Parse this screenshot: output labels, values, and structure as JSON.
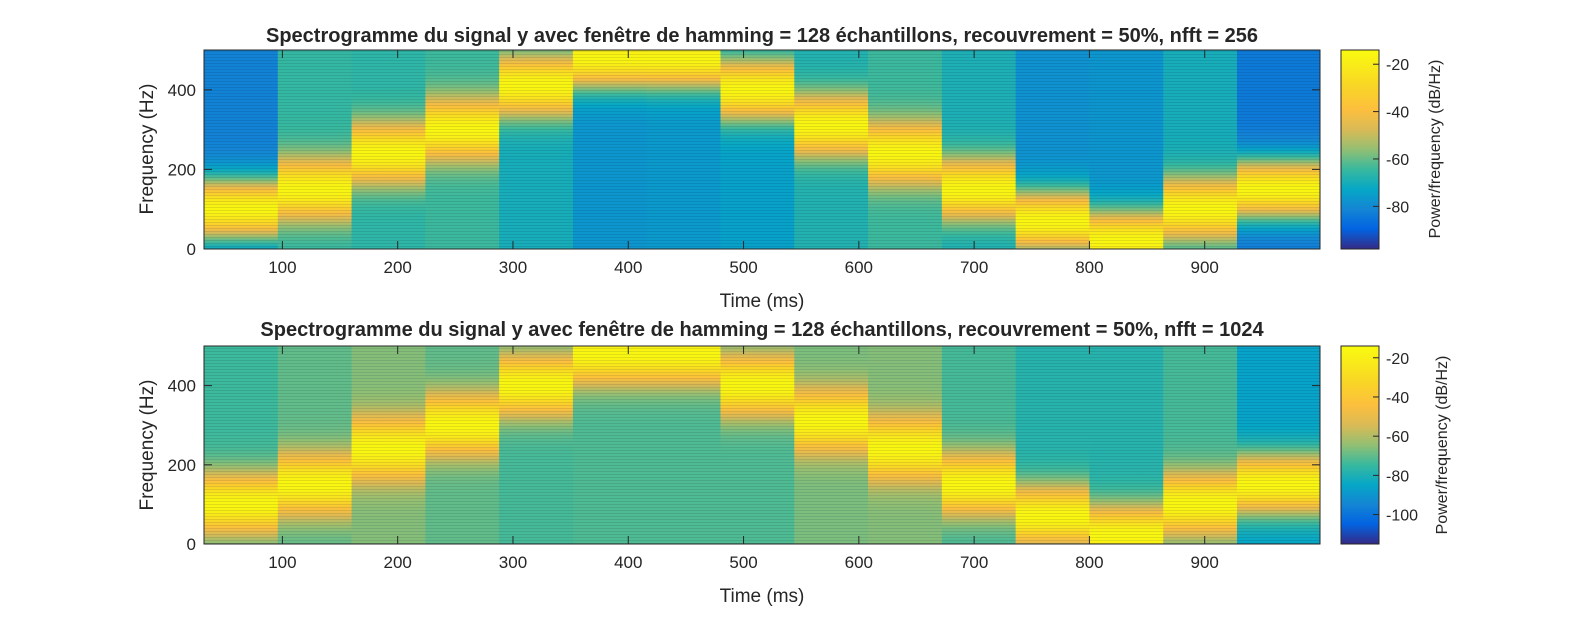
{
  "chart_data": [
    {
      "type": "heatmap",
      "title": "Spectrogramme du signal y avec fenêtre de hamming  = 128 échantillons, recouvrement = 50%, nfft = 256",
      "xlabel": "Time (ms)",
      "ylabel": "Frequency (Hz)",
      "xlim": [
        32,
        1000
      ],
      "ylim": [
        0,
        500
      ],
      "xticks": [
        100,
        200,
        300,
        400,
        500,
        600,
        700,
        800,
        900
      ],
      "yticks": [
        0,
        200,
        400
      ],
      "colorbar": {
        "label": "Power/frequency (dB/Hz)",
        "range": [
          -98,
          -14
        ],
        "ticks": [
          -20,
          -40,
          -60,
          -80
        ],
        "colormap": "parula"
      },
      "segments": [
        {
          "t_start": 32,
          "t_end": 96,
          "center_freq_hz": 100,
          "background_db": -82
        },
        {
          "t_start": 96,
          "t_end": 160,
          "center_freq_hz": 150,
          "background_db": -65
        },
        {
          "t_start": 160,
          "t_end": 224,
          "center_freq_hz": 240,
          "background_db": -66
        },
        {
          "t_start": 224,
          "t_end": 288,
          "center_freq_hz": 300,
          "background_db": -64
        },
        {
          "t_start": 288,
          "t_end": 352,
          "center_freq_hz": 410,
          "background_db": -70
        },
        {
          "t_start": 352,
          "t_end": 416,
          "center_freq_hz": 480,
          "background_db": -77
        },
        {
          "t_start": 416,
          "t_end": 480,
          "center_freq_hz": 480,
          "background_db": -76
        },
        {
          "t_start": 480,
          "t_end": 544,
          "center_freq_hz": 400,
          "background_db": -74
        },
        {
          "t_start": 544,
          "t_end": 608,
          "center_freq_hz": 310,
          "background_db": -68
        },
        {
          "t_start": 608,
          "t_end": 672,
          "center_freq_hz": 240,
          "background_db": -64
        },
        {
          "t_start": 672,
          "t_end": 736,
          "center_freq_hz": 150,
          "background_db": -69
        },
        {
          "t_start": 736,
          "t_end": 800,
          "center_freq_hz": 70,
          "background_db": -78
        },
        {
          "t_start": 800,
          "t_end": 864,
          "center_freq_hz": 20,
          "background_db": -77
        },
        {
          "t_start": 864,
          "t_end": 928,
          "center_freq_hz": 100,
          "background_db": -70
        },
        {
          "t_start": 928,
          "t_end": 1000,
          "center_freq_hz": 150,
          "background_db": -84
        }
      ]
    },
    {
      "type": "heatmap",
      "title": "Spectrogramme du signal y avec fenêtre de hamming = 128 échantillons, recouvrement = 50%, nfft = 1024",
      "xlabel": "Time (ms)",
      "ylabel": "Frequency (Hz)",
      "xlim": [
        32,
        1000
      ],
      "ylim": [
        0,
        500
      ],
      "xticks": [
        100,
        200,
        300,
        400,
        500,
        600,
        700,
        800,
        900
      ],
      "yticks": [
        0,
        200,
        400
      ],
      "colorbar": {
        "label": "Power/frequency (dB/Hz)",
        "range": [
          -115,
          -14
        ],
        "ticks": [
          -20,
          -40,
          -60,
          -80,
          -100
        ],
        "colormap": "parula"
      },
      "segments": [
        {
          "t_start": 32,
          "t_end": 96,
          "center_freq_hz": 100,
          "background_db": -74
        },
        {
          "t_start": 96,
          "t_end": 160,
          "center_freq_hz": 150,
          "background_db": -70
        },
        {
          "t_start": 160,
          "t_end": 224,
          "center_freq_hz": 240,
          "background_db": -66
        },
        {
          "t_start": 224,
          "t_end": 288,
          "center_freq_hz": 300,
          "background_db": -70
        },
        {
          "t_start": 288,
          "t_end": 352,
          "center_freq_hz": 400,
          "background_db": -73
        },
        {
          "t_start": 352,
          "t_end": 416,
          "center_freq_hz": 480,
          "background_db": -72
        },
        {
          "t_start": 416,
          "t_end": 480,
          "center_freq_hz": 480,
          "background_db": -72
        },
        {
          "t_start": 480,
          "t_end": 544,
          "center_freq_hz": 400,
          "background_db": -72
        },
        {
          "t_start": 544,
          "t_end": 608,
          "center_freq_hz": 310,
          "background_db": -67
        },
        {
          "t_start": 608,
          "t_end": 672,
          "center_freq_hz": 240,
          "background_db": -66
        },
        {
          "t_start": 672,
          "t_end": 736,
          "center_freq_hz": 150,
          "background_db": -73
        },
        {
          "t_start": 736,
          "t_end": 800,
          "center_freq_hz": 70,
          "background_db": -78
        },
        {
          "t_start": 800,
          "t_end": 864,
          "center_freq_hz": 20,
          "background_db": -78
        },
        {
          "t_start": 864,
          "t_end": 928,
          "center_freq_hz": 100,
          "background_db": -73
        },
        {
          "t_start": 928,
          "t_end": 1000,
          "center_freq_hz": 150,
          "background_db": -86
        }
      ]
    }
  ]
}
